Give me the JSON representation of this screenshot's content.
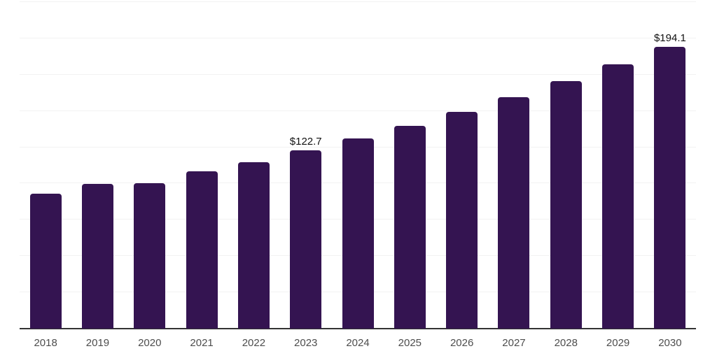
{
  "chart_data": {
    "type": "bar",
    "title": "",
    "xlabel": "",
    "ylabel": "",
    "categories": [
      "2018",
      "2019",
      "2020",
      "2021",
      "2022",
      "2023",
      "2024",
      "2025",
      "2026",
      "2027",
      "2028",
      "2029",
      "2030"
    ],
    "values": [
      92.9,
      99.6,
      100.1,
      108.2,
      114.7,
      122.7,
      130.9,
      139.8,
      149.2,
      159.7,
      170.4,
      181.9,
      194.1
    ],
    "data_labels": [
      {
        "category": "2023",
        "text": "$122.7"
      },
      {
        "category": "2030",
        "text": "$194.1"
      }
    ],
    "ylim": [
      0,
      225
    ],
    "gridline_step": 25,
    "grid": true,
    "legend": false,
    "y_axis_labels_visible": false
  },
  "colors": {
    "bar": "#341451",
    "gridline": "#f2f2f2",
    "axis_line": "#333333",
    "data_label_text": "#121212",
    "tick_label_text": "#4d4d4d",
    "background": "#ffffff"
  }
}
